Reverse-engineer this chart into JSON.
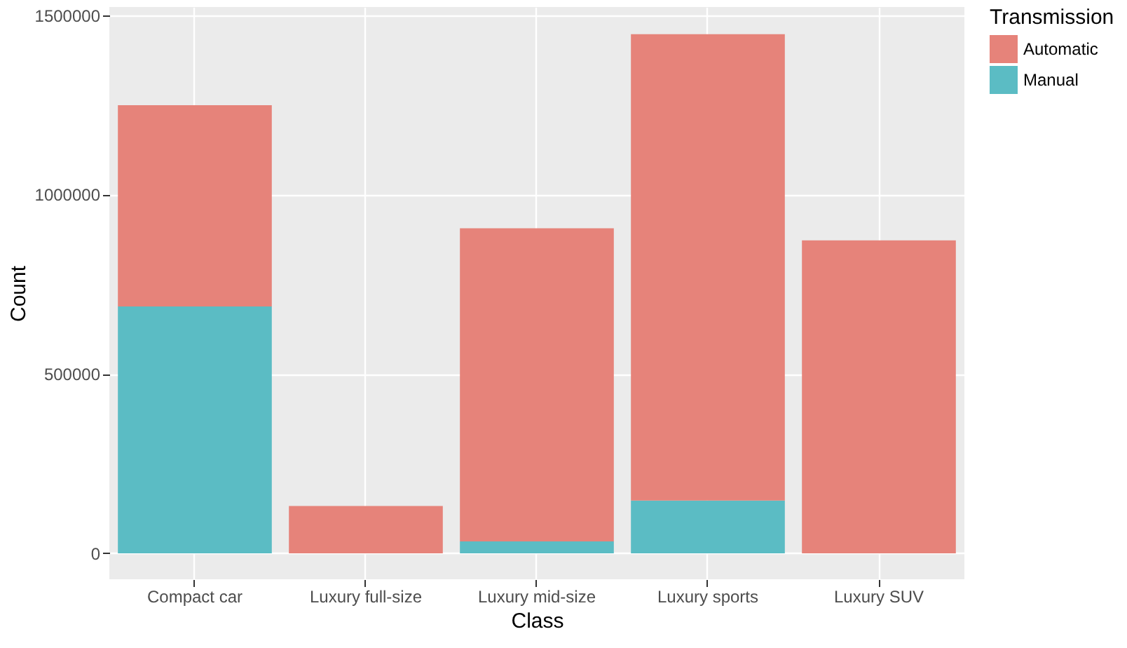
{
  "chart_data": {
    "type": "bar",
    "stacked": true,
    "xlabel": "Class",
    "ylabel": "Count",
    "legend_title": "Transmission",
    "categories": [
      "Compact car",
      "Luxury full-size",
      "Luxury mid-size",
      "Luxury sports",
      "Luxury SUV"
    ],
    "series": [
      {
        "name": "Manual",
        "color": "#5bbcc4",
        "values": [
          688000,
          0,
          33000,
          147000,
          0
        ]
      },
      {
        "name": "Automatic",
        "color": "#e6837a",
        "values": [
          561000,
          132000,
          873000,
          1300000,
          872000
        ]
      }
    ],
    "ylim": [
      -72500,
      1522500
    ],
    "yticks": [
      0,
      500000,
      1000000,
      1500000
    ],
    "grid": true,
    "legend": "right"
  }
}
